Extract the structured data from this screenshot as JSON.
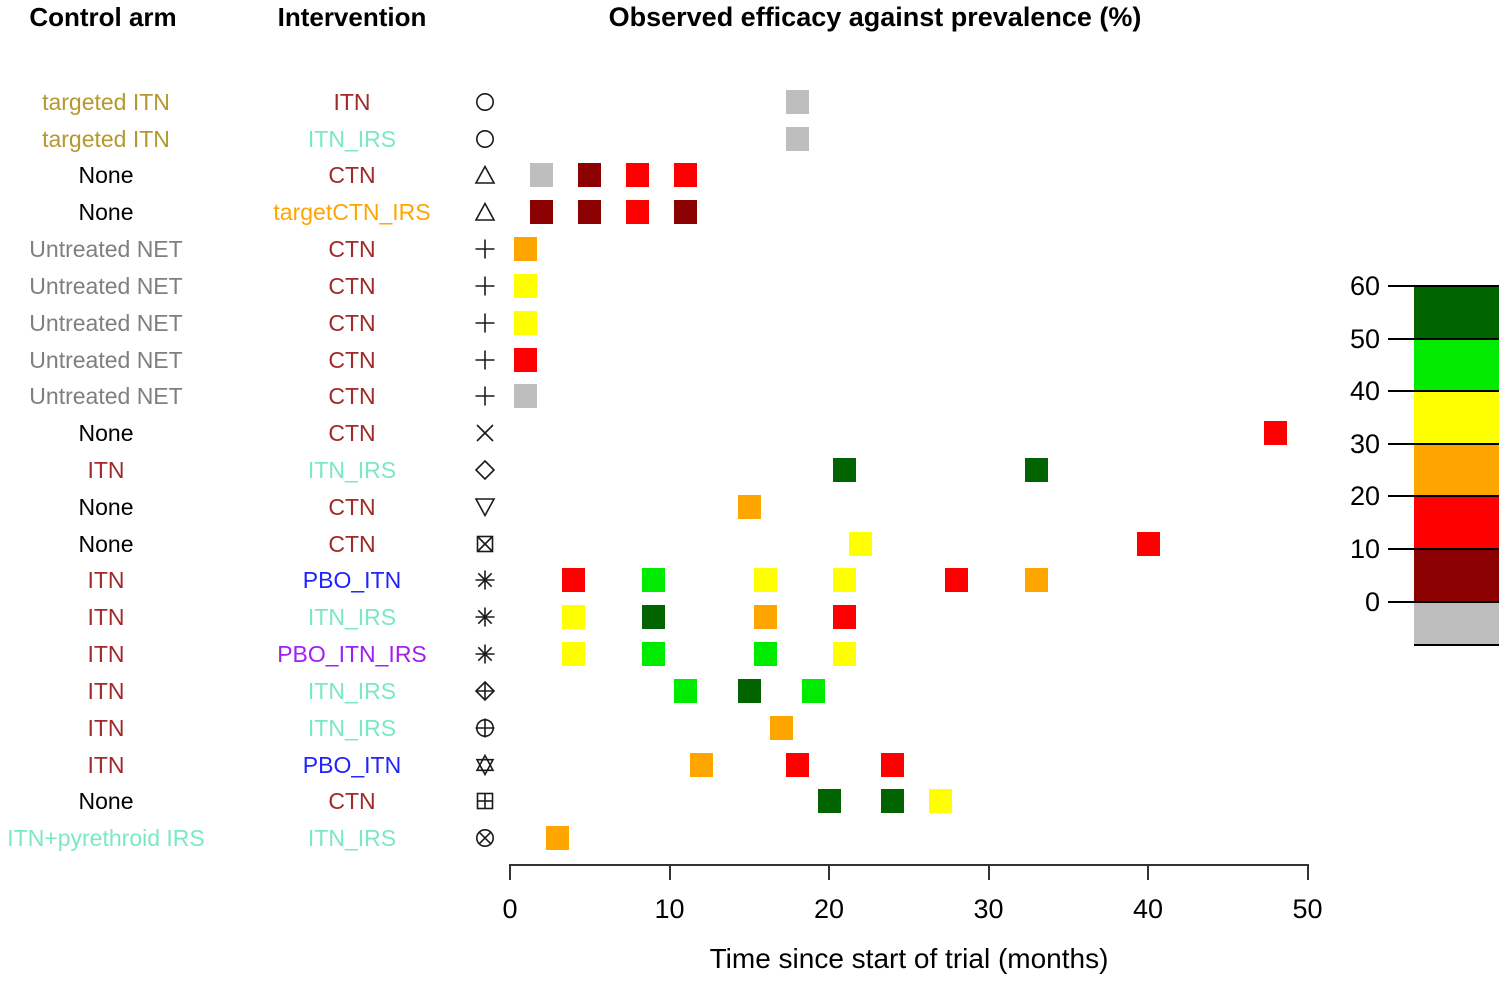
{
  "headers": {
    "control": "Control arm",
    "intervention": "Intervention",
    "title": "Observed efficacy against prevalence (%)"
  },
  "x_axis": {
    "label": "Time since start of trial (months)",
    "ticks": [
      0,
      10,
      20,
      30,
      40,
      50
    ],
    "range": [
      0,
      50
    ]
  },
  "palette": {
    "gray": "#BEBEBE",
    "darkred": "#8B0000",
    "red": "#FF0000",
    "orange": "#FFA500",
    "yellow": "#FFFF00",
    "green": "#00EB00",
    "darkgreen": "#006400"
  },
  "legend": {
    "tick_labels": [
      "60",
      "50",
      "40",
      "30",
      "20",
      "10",
      "0"
    ],
    "bands": [
      {
        "range": "50-60",
        "color": "darkgreen"
      },
      {
        "range": "40-50",
        "color": "green"
      },
      {
        "range": "30-40",
        "color": "yellow"
      },
      {
        "range": "20-30",
        "color": "orange"
      },
      {
        "range": "10-20",
        "color": "red"
      },
      {
        "range": "0-10",
        "color": "darkred"
      },
      {
        "range": "<0",
        "color": "gray"
      }
    ]
  },
  "chart_data": {
    "type": "scatter",
    "title": "Observed efficacy against prevalence (%)",
    "xlabel": "Time since start of trial (months)",
    "x_ticks": [
      0,
      10,
      20,
      30,
      40,
      50
    ],
    "xlim": [
      0,
      50
    ],
    "color_scale_breaks": [
      0,
      10,
      20,
      30,
      40,
      50,
      60
    ],
    "color_scale_meaning": "observed efficacy against prevalence (%), gray = below 0",
    "rows": [
      {
        "control": "targeted ITN",
        "control_color": "#B3992F",
        "intervention": "ITN",
        "intervention_color": "#A12A2A",
        "symbol": "circle",
        "points": [
          {
            "month": 18,
            "color": "gray"
          }
        ]
      },
      {
        "control": "targeted ITN",
        "control_color": "#B3992F",
        "intervention": "ITN_IRS",
        "intervention_color": "#7AE8C6",
        "symbol": "circle",
        "points": [
          {
            "month": 18,
            "color": "gray"
          }
        ]
      },
      {
        "control": "None",
        "control_color": "#000000",
        "intervention": "CTN",
        "intervention_color": "#A12A2A",
        "symbol": "triangle-up",
        "points": [
          {
            "month": 2,
            "color": "gray"
          },
          {
            "month": 5,
            "color": "darkred"
          },
          {
            "month": 8,
            "color": "red"
          },
          {
            "month": 11,
            "color": "red"
          }
        ]
      },
      {
        "control": "None",
        "control_color": "#000000",
        "intervention": "targetCTN_IRS",
        "intervention_color": "#FFA500",
        "symbol": "triangle-up",
        "points": [
          {
            "month": 2,
            "color": "darkred"
          },
          {
            "month": 5,
            "color": "darkred"
          },
          {
            "month": 8,
            "color": "red"
          },
          {
            "month": 11,
            "color": "darkred"
          }
        ]
      },
      {
        "control": "Untreated NET",
        "control_color": "#7F7F7F",
        "intervention": "CTN",
        "intervention_color": "#A12A2A",
        "symbol": "plus",
        "points": [
          {
            "month": 1,
            "color": "orange"
          }
        ]
      },
      {
        "control": "Untreated NET",
        "control_color": "#7F7F7F",
        "intervention": "CTN",
        "intervention_color": "#A12A2A",
        "symbol": "plus",
        "points": [
          {
            "month": 1,
            "color": "yellow"
          }
        ]
      },
      {
        "control": "Untreated NET",
        "control_color": "#7F7F7F",
        "intervention": "CTN",
        "intervention_color": "#A12A2A",
        "symbol": "plus",
        "points": [
          {
            "month": 1,
            "color": "yellow"
          }
        ]
      },
      {
        "control": "Untreated NET",
        "control_color": "#7F7F7F",
        "intervention": "CTN",
        "intervention_color": "#A12A2A",
        "symbol": "plus",
        "points": [
          {
            "month": 1,
            "color": "red"
          }
        ]
      },
      {
        "control": "Untreated NET",
        "control_color": "#7F7F7F",
        "intervention": "CTN",
        "intervention_color": "#A12A2A",
        "symbol": "plus",
        "points": [
          {
            "month": 1,
            "color": "gray"
          }
        ]
      },
      {
        "control": "None",
        "control_color": "#000000",
        "intervention": "CTN",
        "intervention_color": "#A12A2A",
        "symbol": "cross",
        "points": [
          {
            "month": 48,
            "color": "red"
          }
        ]
      },
      {
        "control": "ITN",
        "control_color": "#A12A2A",
        "intervention": "ITN_IRS",
        "intervention_color": "#7AE8C6",
        "symbol": "diamond",
        "points": [
          {
            "month": 21,
            "color": "darkgreen"
          },
          {
            "month": 33,
            "color": "darkgreen"
          }
        ]
      },
      {
        "control": "None",
        "control_color": "#000000",
        "intervention": "CTN",
        "intervention_color": "#A12A2A",
        "symbol": "triangle-down",
        "points": [
          {
            "month": 15,
            "color": "orange"
          }
        ]
      },
      {
        "control": "None",
        "control_color": "#000000",
        "intervention": "CTN",
        "intervention_color": "#A12A2A",
        "symbol": "square-cross",
        "points": [
          {
            "month": 22,
            "color": "yellow"
          },
          {
            "month": 40,
            "color": "red"
          }
        ]
      },
      {
        "control": "ITN",
        "control_color": "#A12A2A",
        "intervention": "PBO_ITN",
        "intervention_color": "#2222FF",
        "symbol": "asterisk",
        "points": [
          {
            "month": 4,
            "color": "red"
          },
          {
            "month": 9,
            "color": "green"
          },
          {
            "month": 16,
            "color": "yellow"
          },
          {
            "month": 21,
            "color": "yellow"
          },
          {
            "month": 28,
            "color": "red"
          },
          {
            "month": 33,
            "color": "orange"
          }
        ]
      },
      {
        "control": "ITN",
        "control_color": "#A12A2A",
        "intervention": "ITN_IRS",
        "intervention_color": "#7AE8C6",
        "symbol": "asterisk",
        "points": [
          {
            "month": 4,
            "color": "yellow"
          },
          {
            "month": 9,
            "color": "darkgreen"
          },
          {
            "month": 16,
            "color": "orange"
          },
          {
            "month": 21,
            "color": "red"
          }
        ]
      },
      {
        "control": "ITN",
        "control_color": "#A12A2A",
        "intervention": "PBO_ITN_IRS",
        "intervention_color": "#A020F0",
        "symbol": "asterisk",
        "points": [
          {
            "month": 4,
            "color": "yellow"
          },
          {
            "month": 9,
            "color": "green"
          },
          {
            "month": 16,
            "color": "green"
          },
          {
            "month": 21,
            "color": "yellow"
          }
        ]
      },
      {
        "control": "ITN",
        "control_color": "#A12A2A",
        "intervention": "ITN_IRS",
        "intervention_color": "#7AE8C6",
        "symbol": "diamond-plus",
        "points": [
          {
            "month": 11,
            "color": "green"
          },
          {
            "month": 15,
            "color": "darkgreen"
          },
          {
            "month": 19,
            "color": "green"
          }
        ]
      },
      {
        "control": "ITN",
        "control_color": "#A12A2A",
        "intervention": "ITN_IRS",
        "intervention_color": "#7AE8C6",
        "symbol": "circle-plus",
        "points": [
          {
            "month": 17,
            "color": "orange"
          }
        ]
      },
      {
        "control": "ITN",
        "control_color": "#A12A2A",
        "intervention": "PBO_ITN",
        "intervention_color": "#2222FF",
        "symbol": "hexagram",
        "points": [
          {
            "month": 12,
            "color": "orange"
          },
          {
            "month": 18,
            "color": "red"
          },
          {
            "month": 24,
            "color": "red"
          }
        ]
      },
      {
        "control": "None",
        "control_color": "#000000",
        "intervention": "CTN",
        "intervention_color": "#A12A2A",
        "symbol": "square-plus",
        "points": [
          {
            "month": 20,
            "color": "darkgreen"
          },
          {
            "month": 24,
            "color": "darkgreen"
          },
          {
            "month": 27,
            "color": "yellow"
          }
        ]
      },
      {
        "control": "ITN+pyrethroid IRS",
        "control_color": "#7AE8C6",
        "intervention": "ITN_IRS",
        "intervention_color": "#7AE8C6",
        "symbol": "circle-cross",
        "points": [
          {
            "month": 3,
            "color": "orange"
          }
        ]
      }
    ]
  }
}
